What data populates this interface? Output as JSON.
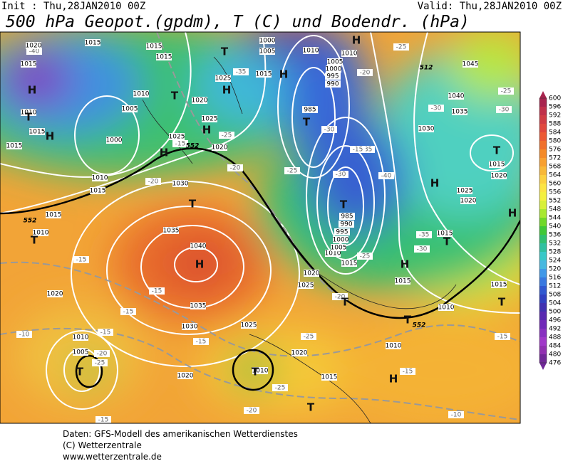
{
  "header": {
    "init": "Init : Thu,28JAN2010 00Z",
    "valid": "Valid: Thu,28JAN2010 00Z",
    "title": "500 hPa Geopot.(gpdm), T (C) und Bodendr. (hPa)"
  },
  "colorbar": {
    "labels": [
      600,
      596,
      592,
      588,
      584,
      580,
      576,
      572,
      568,
      564,
      560,
      556,
      552,
      548,
      544,
      540,
      536,
      532,
      528,
      524,
      520,
      516,
      512,
      508,
      504,
      500,
      496,
      492,
      488,
      484,
      480,
      476
    ],
    "colors": [
      "#a8244e",
      "#c0304a",
      "#d03c44",
      "#e0483e",
      "#ec5a34",
      "#f0702c",
      "#f48a28",
      "#f8a030",
      "#f8b838",
      "#fcd040",
      "#fce444",
      "#f4f040",
      "#d8f038",
      "#a8e830",
      "#70d828",
      "#40c838",
      "#30c070",
      "#30c0a0",
      "#38c8c8",
      "#48b8e0",
      "#4098e8",
      "#3878e0",
      "#3058d0",
      "#3040c0",
      "#4030b0",
      "#5828b0",
      "#7028b8",
      "#8830c0",
      "#a038c8",
      "#9030b0",
      "#702898"
    ]
  },
  "highs_lows": [
    "H",
    "H",
    "H",
    "H",
    "H",
    "H",
    "H",
    "H",
    "H",
    "H",
    "H",
    "H",
    "T",
    "T",
    "T",
    "T",
    "T",
    "T",
    "T",
    "T",
    "T",
    "T",
    "T",
    "T",
    "T",
    "T",
    "T"
  ],
  "isobar_labels": [
    "1020",
    "1015",
    "1015",
    "1010",
    "1005",
    "1010",
    "1000",
    "1015",
    "1015",
    "1010",
    "1015",
    "1015",
    "1010",
    "1025",
    "1020",
    "1030",
    "1035",
    "1040",
    "1035",
    "1030",
    "1025",
    "1020",
    "1010",
    "1005",
    "1020",
    "1010",
    "1020",
    "1015",
    "1010",
    "1015",
    "1010",
    "1015",
    "1025",
    "1020",
    "1010",
    "1015",
    "985",
    "985",
    "990",
    "995",
    "1000",
    "1005",
    "1005",
    "1000",
    "995",
    "990",
    "1010",
    "1010",
    "1005",
    "1000",
    "1015",
    "1025",
    "1020",
    "1025",
    "1030",
    "1035",
    "1040",
    "1045",
    "1025",
    "1020",
    "1015",
    "1015",
    "1020",
    "1015",
    "1015"
  ],
  "isotherm_labels": [
    "-40",
    "-35",
    "-30",
    "-30",
    "-25",
    "-25",
    "-20",
    "-20",
    "-15",
    "-40",
    "-35",
    "-30",
    "-25",
    "-15",
    "-25",
    "-20",
    "-30",
    "-35",
    "-30",
    "-25",
    "-15",
    "-15",
    "-15",
    "-10",
    "-15",
    "-20",
    "-25",
    "-15",
    "-20",
    "-25",
    "-25",
    "-20",
    "-15",
    "-10",
    "-15",
    "-15"
  ],
  "contour_labels": [
    "552",
    "552",
    "552",
    "512"
  ],
  "footer": [
    "Daten: GFS-Modell des amerikanischen Wetterdienstes",
    "(C) Wetterzentrale",
    "www.wetterzentrale.de"
  ]
}
